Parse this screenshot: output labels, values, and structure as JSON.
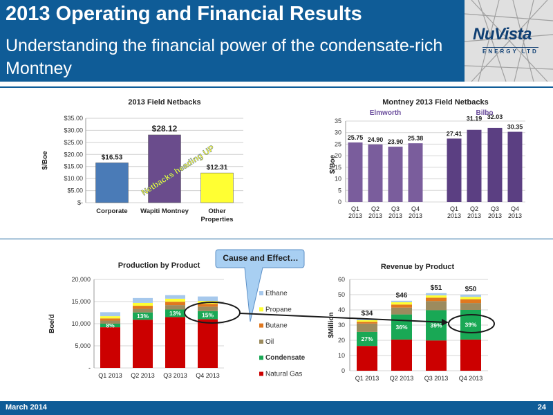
{
  "header": {
    "title": "2013 Operating and Financial Results",
    "subtitle": "Understanding the financial power of the condensate-rich Montney"
  },
  "logo": {
    "main": "NuVista",
    "sub": "ENERGY LTD"
  },
  "footer": {
    "date": "March 2014",
    "page": "24"
  },
  "callout": {
    "text": "Cause and Effect…"
  },
  "colors": {
    "brand_blue": "#0f5c97",
    "bar_blue": "#4a7bb7",
    "bar_purple": "#6a4c8c",
    "bar_yellow": "#ffff33",
    "natural_gas": "#cc0000",
    "condensate": "#19a855",
    "oil": "#9c8b5e",
    "butane": "#e07820",
    "propane": "#ffff33",
    "ethane": "#a6c8ec"
  },
  "chart_data": [
    {
      "type": "bar",
      "title": "2013 Field Netbacks",
      "ylabel": "$/Boe",
      "categories": [
        "Corporate",
        "Wapiti Montney",
        "Other Properties"
      ],
      "values": [
        16.53,
        28.12,
        12.31
      ],
      "value_labels": [
        "$16.53",
        "$28.12",
        "$12.31"
      ],
      "yticks": [
        "$-",
        "$5.00",
        "$10.00",
        "$15.00",
        "$20.00",
        "$25.00",
        "$30.00",
        "$35.00"
      ],
      "ylim": [
        0,
        35
      ],
      "annotation": "Netbacks heading UP",
      "grid": true
    },
    {
      "type": "bar",
      "title": "Montney 2013 Field Netbacks",
      "ylabel": "$/Boe",
      "groups": [
        "Elmworth",
        "Bilbo"
      ],
      "categories": [
        [
          "Q1",
          "2013"
        ],
        [
          "Q2",
          "2013"
        ],
        [
          "Q3",
          "2013"
        ],
        [
          "Q4",
          "2013"
        ],
        [
          "Q1",
          "2013"
        ],
        [
          "Q2",
          "2013"
        ],
        [
          "Q3",
          "2013"
        ],
        [
          "Q4",
          "2013"
        ]
      ],
      "values": [
        25.75,
        24.9,
        23.9,
        25.38,
        27.41,
        31.19,
        32.03,
        30.35
      ],
      "value_labels": [
        "25.75",
        "24.90",
        "23.90",
        "25.38",
        "27.41",
        "31.19",
        "32.03",
        "30.35"
      ],
      "yticks": [
        "0",
        "5",
        "10",
        "15",
        "20",
        "25",
        "30",
        "35"
      ],
      "ylim": [
        0,
        35
      ],
      "grid": true
    },
    {
      "type": "bar",
      "stacked": true,
      "title": "Production by Product",
      "ylabel": "Boe/d",
      "categories": [
        "Q1 2013",
        "Q2 2013",
        "Q3 2013",
        "Q4 2013"
      ],
      "yticks": [
        "-",
        "5,000",
        "10,000",
        "15,000",
        "20,000"
      ],
      "ylim": [
        0,
        20000
      ],
      "series": [
        {
          "name": "Natural Gas",
          "values": [
            9200,
            10900,
            11500,
            11000
          ]
        },
        {
          "name": "Condensate",
          "values": [
            800,
            1650,
            1700,
            1850
          ]
        },
        {
          "name": "Oil",
          "values": [
            700,
            800,
            1000,
            1000
          ]
        },
        {
          "name": "Butane",
          "values": [
            500,
            700,
            750,
            650
          ]
        },
        {
          "name": "Propane",
          "values": [
            500,
            650,
            700,
            650
          ]
        },
        {
          "name": "Ethane",
          "values": [
            900,
            1100,
            800,
            1000
          ]
        }
      ],
      "pct_labels": [
        "8%",
        "13%",
        "13%",
        "15%"
      ],
      "legend": [
        "Ethane",
        "Propane",
        "Butane",
        "Oil",
        "Condensate",
        "Natural Gas"
      ],
      "legend_position": "right"
    },
    {
      "type": "bar",
      "stacked": true,
      "title": "Revenue by Product",
      "ylabel": "$Million",
      "categories": [
        "Q1 2013",
        "Q2 2013",
        "Q3 2013",
        "Q4 2013"
      ],
      "yticks": [
        "0",
        "10",
        "20",
        "30",
        "40",
        "50",
        "60"
      ],
      "ylim": [
        0,
        60
      ],
      "series": [
        {
          "name": "Natural Gas",
          "values": [
            16.3,
            20.5,
            19.9,
            20.5
          ]
        },
        {
          "name": "Condensate",
          "values": [
            9.2,
            16.5,
            19.9,
            19.5
          ]
        },
        {
          "name": "Oil",
          "values": [
            5.5,
            4.5,
            6.0,
            4.5
          ]
        },
        {
          "name": "Butane",
          "values": [
            1.2,
            2.0,
            2.2,
            2.5
          ]
        },
        {
          "name": "Propane",
          "values": [
            1.0,
            1.5,
            1.5,
            1.5
          ]
        },
        {
          "name": "Ethane",
          "values": [
            0.8,
            1.0,
            1.5,
            1.5
          ]
        }
      ],
      "total_labels": [
        "$34",
        "$46",
        "$51",
        "$50"
      ],
      "pct_labels": [
        "27%",
        "36%",
        "39%",
        "39%"
      ]
    }
  ]
}
